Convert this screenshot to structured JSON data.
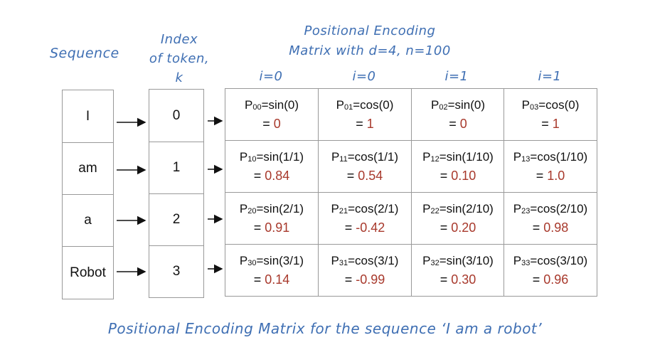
{
  "labels": {
    "sequence": "Sequence",
    "index_line1": "Index",
    "index_line2": "of token,",
    "index_line3": "k",
    "title_line1": "Positional Encoding",
    "title_line2": "Matrix with d=4, n=100",
    "caption": "Positional Encoding Matrix for the sequence ‘I am a robot’"
  },
  "i_labels": [
    "i=0",
    "i=0",
    "i=1",
    "i=1"
  ],
  "sequence": [
    "I",
    "am",
    "a",
    "Robot"
  ],
  "indices": [
    "0",
    "1",
    "2",
    "3"
  ],
  "matrix": [
    [
      {
        "sub": "00",
        "func": "=sin(0)",
        "value": "0"
      },
      {
        "sub": "01",
        "func": "=cos(0)",
        "value": "1"
      },
      {
        "sub": "02",
        "func": "=sin(0)",
        "value": "0"
      },
      {
        "sub": "03",
        "func": "=cos(0)",
        "value": "1"
      }
    ],
    [
      {
        "sub": "10",
        "func": "=sin(1/1)",
        "value": "0.84"
      },
      {
        "sub": "11",
        "func": "=cos(1/1)",
        "value": "0.54"
      },
      {
        "sub": "12",
        "func": "=sin(1/10)",
        "value": "0.10"
      },
      {
        "sub": "13",
        "func": "=cos(1/10)",
        "value": "1.0"
      }
    ],
    [
      {
        "sub": "20",
        "func": "=sin(2/1)",
        "value": "0.91"
      },
      {
        "sub": "21",
        "func": "=cos(2/1)",
        "value": "-0.42"
      },
      {
        "sub": "22",
        "func": "=sin(2/10)",
        "value": "0.20"
      },
      {
        "sub": "23",
        "func": "=cos(2/10)",
        "value": "0.98"
      }
    ],
    [
      {
        "sub": "30",
        "func": "=sin(3/1)",
        "value": "0.14"
      },
      {
        "sub": "31",
        "func": "=cos(3/1)",
        "value": "-0.99"
      },
      {
        "sub": "32",
        "func": "=sin(3/10)",
        "value": "0.30"
      },
      {
        "sub": "33",
        "func": "=cos(3/10)",
        "value": "0.96"
      }
    ]
  ],
  "colors": {
    "handwriting": "#3f6fb3",
    "value": "#a8392c",
    "border": "#999999"
  }
}
